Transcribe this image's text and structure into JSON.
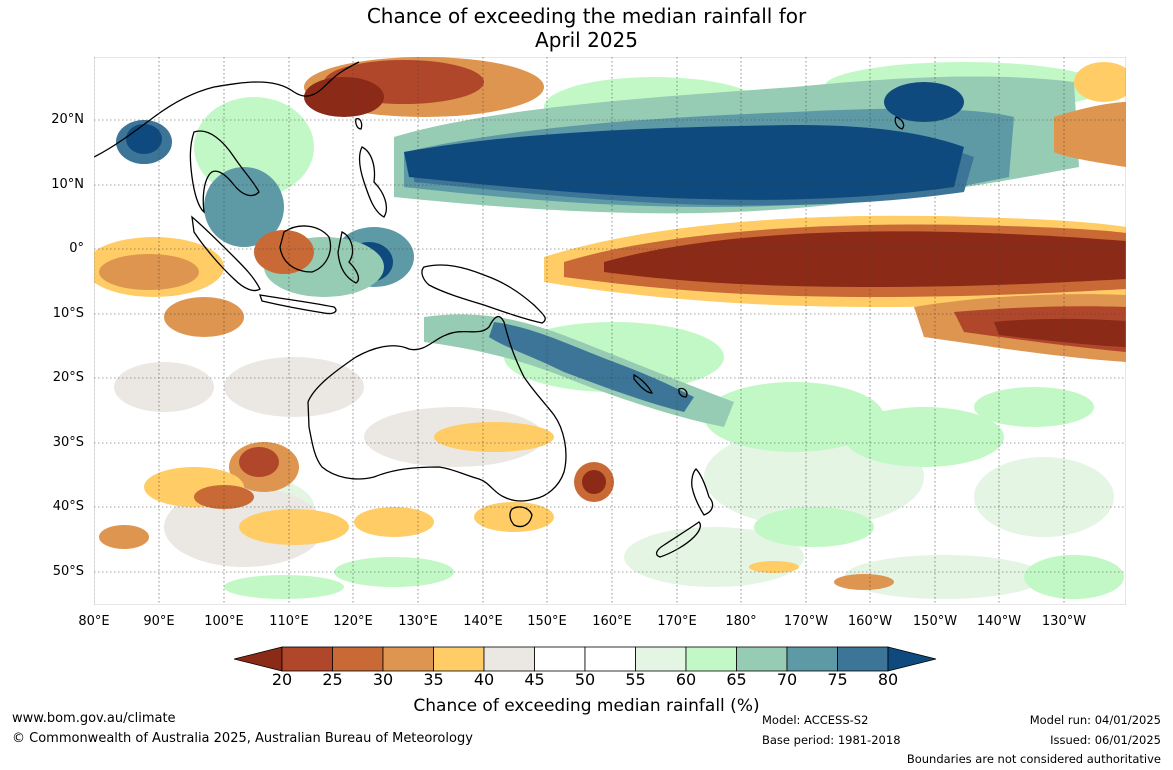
{
  "title_line1": "Chance of exceeding the median rainfall for",
  "title_line2": "April 2025",
  "lat_labels": [
    "20°N",
    "10°N",
    "0°",
    "10°S",
    "20°S",
    "30°S",
    "40°S",
    "50°S"
  ],
  "lon_labels": [
    "80°E",
    "90°E",
    "100°E",
    "110°E",
    "120°E",
    "130°E",
    "140°E",
    "150°E",
    "160°E",
    "170°E",
    "180°",
    "170°W",
    "160°W",
    "150°W",
    "140°W",
    "130°W"
  ],
  "legend": {
    "title": "Chance of exceeding median rainfall (%)",
    "ticks": [
      "20",
      "25",
      "30",
      "35",
      "40",
      "45",
      "50",
      "55",
      "60",
      "65",
      "70",
      "75",
      "80"
    ],
    "colors": [
      "#8b2a16",
      "#b0462a",
      "#c96935",
      "#dd9550",
      "#ffcc66",
      "#ebe8e3",
      "#ffffff",
      "#ffffff",
      "#e4f5e4",
      "#c2f8c6",
      "#96cbb4",
      "#5d9aa5",
      "#3c7597",
      "#0f4a7f"
    ]
  },
  "footer": {
    "url": "www.bom.gov.au/climate",
    "copyright": "© Commonwealth of Australia 2025, Australian Bureau of Meteorology",
    "model": "Model: ACCESS-S2",
    "base_period": "Base period: 1981-2018",
    "model_run": "Model run: 04/01/2025",
    "issued": "Issued: 06/01/2025",
    "boundaries": "Boundaries are not considered authoritative"
  }
}
